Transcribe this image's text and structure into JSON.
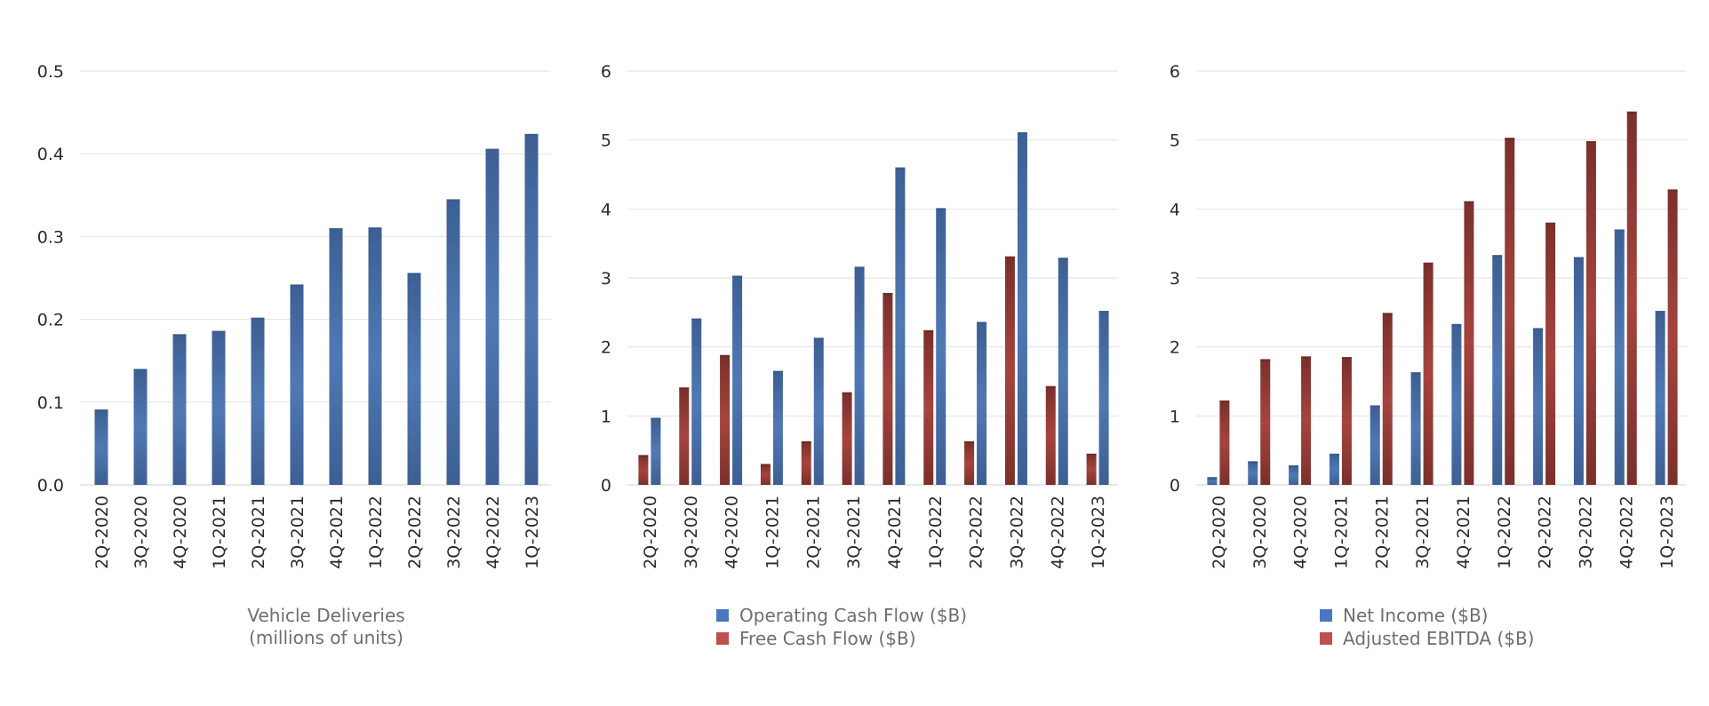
{
  "colors": {
    "blue": "#4a6fa5",
    "blue_edge": "#3a5a8c",
    "red": "#8b3a35",
    "red_edge": "#6e2a26",
    "blue_swatch": "#4a78c0",
    "red_swatch": "#c0504d",
    "grid": "#e2e2e2",
    "axis": "#d0d0d0"
  },
  "chart_data": [
    {
      "type": "bar",
      "categories": [
        "2Q-2020",
        "3Q-2020",
        "4Q-2020",
        "1Q-2021",
        "2Q-2021",
        "3Q-2021",
        "4Q-2021",
        "1Q-2022",
        "2Q-2022",
        "3Q-2022",
        "4Q-2022",
        "1Q-2023"
      ],
      "series": [
        {
          "name": "",
          "color": "#4a6fa5",
          "values": [
            0.09,
            0.139,
            0.181,
            0.185,
            0.201,
            0.241,
            0.309,
            0.31,
            0.255,
            0.344,
            0.405,
            0.423
          ]
        }
      ],
      "yticks": [
        "0.0",
        "0.1",
        "0.2",
        "0.3",
        "0.4",
        "0.5"
      ],
      "ylim": [
        0,
        0.5
      ],
      "grid": true,
      "caption": [
        "Vehicle Deliveries",
        "(millions of units)"
      ]
    },
    {
      "type": "bar",
      "categories": [
        "2Q-2020",
        "3Q-2020",
        "4Q-2020",
        "1Q-2021",
        "2Q-2021",
        "3Q-2021",
        "4Q-2021",
        "1Q-2022",
        "2Q-2022",
        "3Q-2022",
        "4Q-2022",
        "1Q-2023"
      ],
      "series": [
        {
          "name": "Free Cash Flow ($B)",
          "color": "#8b3a35",
          "values": [
            0.42,
            1.4,
            1.87,
            0.29,
            0.62,
            1.33,
            2.77,
            2.23,
            0.62,
            3.3,
            1.42,
            0.44
          ]
        },
        {
          "name": "Operating Cash Flow ($B)",
          "color": "#4a6fa5",
          "values": [
            0.96,
            2.4,
            3.02,
            1.64,
            2.12,
            3.15,
            4.59,
            4.0,
            2.35,
            5.1,
            3.28,
            2.51
          ]
        }
      ],
      "yticks": [
        "0",
        "1",
        "2",
        "3",
        "4",
        "5",
        "6"
      ],
      "ylim": [
        0,
        6
      ],
      "grid": true,
      "legend": [
        {
          "label": "Operating Cash Flow ($B)",
          "color": "#4a78c0"
        },
        {
          "label": "Free Cash Flow ($B)",
          "color": "#c0504d"
        }
      ]
    },
    {
      "type": "bar",
      "categories": [
        "2Q-2020",
        "3Q-2020",
        "4Q-2020",
        "1Q-2021",
        "2Q-2021",
        "3Q-2021",
        "4Q-2021",
        "1Q-2022",
        "2Q-2022",
        "3Q-2022",
        "4Q-2022",
        "1Q-2023"
      ],
      "series": [
        {
          "name": "Net Income ($B)",
          "color": "#4a6fa5",
          "values": [
            0.1,
            0.33,
            0.27,
            0.44,
            1.14,
            1.62,
            2.32,
            3.32,
            2.26,
            3.29,
            3.69,
            2.51
          ]
        },
        {
          "name": "Adjusted EBITDA ($B)",
          "color": "#8b3a35",
          "values": [
            1.21,
            1.81,
            1.85,
            1.84,
            2.48,
            3.21,
            4.1,
            5.02,
            3.79,
            4.97,
            5.4,
            4.27
          ]
        }
      ],
      "yticks": [
        "0",
        "1",
        "2",
        "3",
        "4",
        "5",
        "6"
      ],
      "ylim": [
        0,
        6
      ],
      "grid": true,
      "legend": [
        {
          "label": "Net Income ($B)",
          "color": "#4a78c0"
        },
        {
          "label": "Adjusted EBITDA ($B)",
          "color": "#c0504d"
        }
      ]
    }
  ]
}
